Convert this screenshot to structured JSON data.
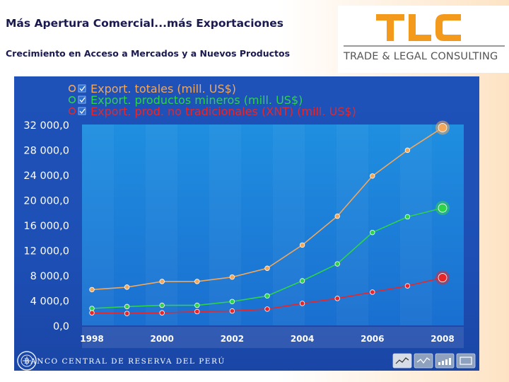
{
  "slide": {
    "title": "Más Apertura Comercial...más Exportaciones",
    "subtitle": "Crecimiento en Acceso a Mercados y a Nuevos Productos"
  },
  "logo": {
    "mark": "TLC",
    "name": "TRADE & LEGAL CONSULTING",
    "color": "#f39a1d"
  },
  "footer": {
    "bank_name": "BANCO CENTRAL DE RESERVA DEL PERÚ",
    "seal_icon": "bank-seal-icon",
    "view_buttons": [
      "line-chart-icon",
      "area-chart-icon",
      "bar-chart-icon",
      "table-icon"
    ]
  },
  "chart_data": {
    "type": "line",
    "x": [
      1998,
      1999,
      2000,
      2001,
      2002,
      2003,
      2004,
      2005,
      2006,
      2007,
      2008
    ],
    "x_tick_labels": [
      "1998",
      "2000",
      "2002",
      "2004",
      "2006",
      "2008"
    ],
    "y_tick_labels": [
      "0,0",
      "4 000,0",
      "8 000,0",
      "12 000,0",
      "16 000,0",
      "20 000,0",
      "24 000,0",
      "28 000,0",
      "32 000,0"
    ],
    "ylim": [
      0,
      32000
    ],
    "grid": false,
    "legend_position": "top",
    "series": [
      {
        "name": "Export. totales (mill. US$)",
        "color": "#f2a75a",
        "values": [
          5700,
          6100,
          7000,
          7000,
          7700,
          9100,
          12800,
          17400,
          23800,
          27900,
          31500
        ]
      },
      {
        "name": "Export. productos mineros (mill. US$)",
        "color": "#2ed34a",
        "values": [
          2700,
          3000,
          3200,
          3200,
          3800,
          4700,
          7100,
          9800,
          14800,
          17300,
          18700
        ]
      },
      {
        "name": "Export. prod. no tradicionales (XNT) (mill. US$)",
        "color": "#e8262a",
        "values": [
          2000,
          1900,
          2000,
          2200,
          2300,
          2600,
          3500,
          4300,
          5300,
          6300,
          7600
        ]
      }
    ]
  }
}
